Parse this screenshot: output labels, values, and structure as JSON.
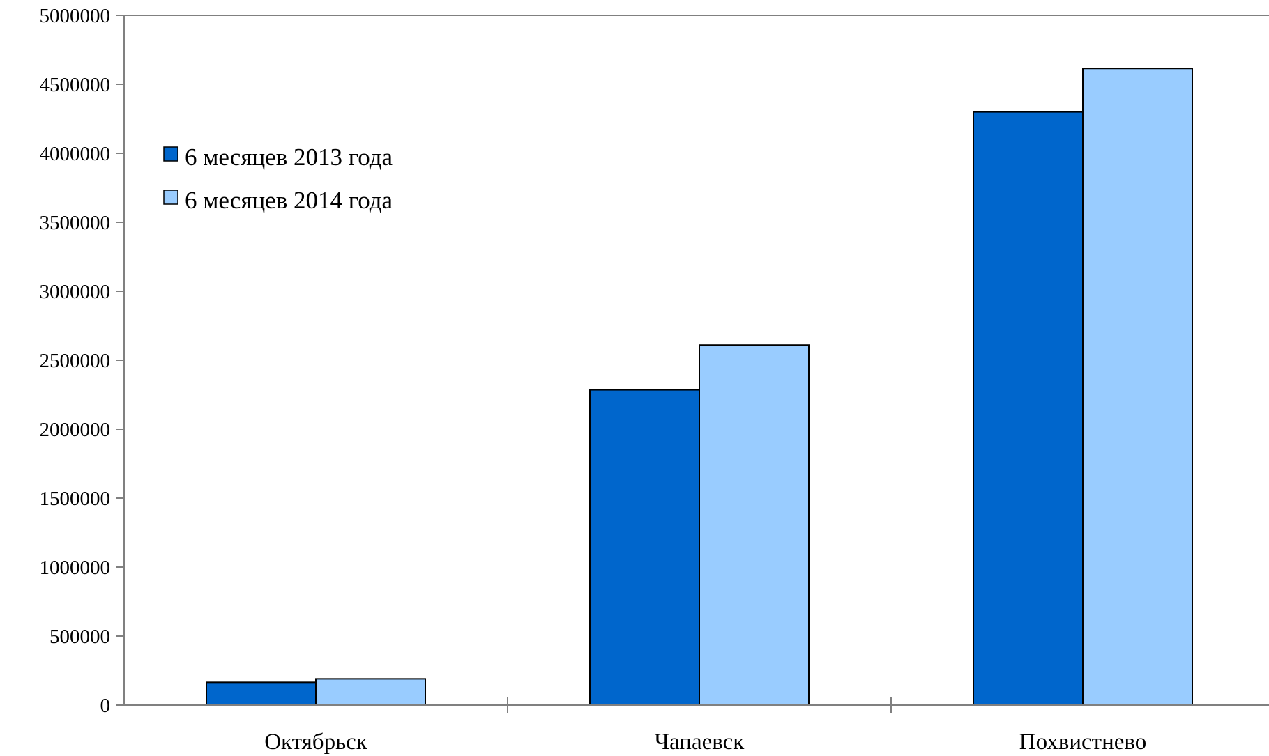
{
  "chart_data": {
    "type": "bar",
    "categories": [
      "Октябрьск",
      "Чапаевск",
      "Похвистнево"
    ],
    "series": [
      {
        "name": "6 месяцев 2013 года",
        "color": "#0066CC",
        "values": [
          165000,
          2285000,
          4300000
        ]
      },
      {
        "name": "6 месяцев 2014 года",
        "color": "#99CCFF",
        "values": [
          190000,
          2610000,
          4615000
        ]
      }
    ],
    "ylim": [
      0,
      5000000
    ],
    "yticks": [
      "0",
      "500000",
      "1000000",
      "1500000",
      "2000000",
      "2500000",
      "3000000",
      "3500000",
      "4000000",
      "4500000",
      "5000000"
    ],
    "title": "",
    "xlabel": "",
    "ylabel": "",
    "legend_position": "upper-left",
    "grid": false
  }
}
